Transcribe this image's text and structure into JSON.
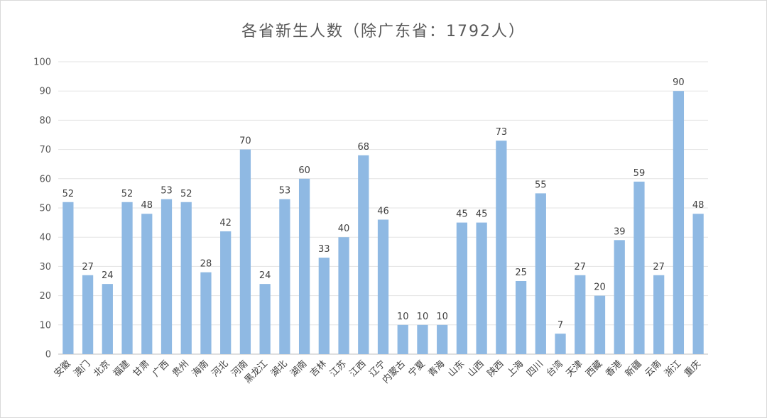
{
  "chart_data": {
    "type": "bar",
    "title": "各省新生人数（除广东省：1792人）",
    "xlabel": "",
    "ylabel": "",
    "ylim": [
      0,
      100
    ],
    "yticks": [
      0,
      10,
      20,
      30,
      40,
      50,
      60,
      70,
      80,
      90,
      100
    ],
    "grid": true,
    "legend": "none",
    "bar_color": "#8fb9e3",
    "categories": [
      "安徽",
      "澳门",
      "北京",
      "福建",
      "甘肃",
      "广西",
      "贵州",
      "海南",
      "河北",
      "河南",
      "黑龙江",
      "湖北",
      "湖南",
      "吉林",
      "江苏",
      "江西",
      "辽宁",
      "内蒙古",
      "宁夏",
      "青海",
      "山东",
      "山西",
      "陕西",
      "上海",
      "四川",
      "台湾",
      "天津",
      "西藏",
      "香港",
      "新疆",
      "云南",
      "浙江",
      "重庆"
    ],
    "values": [
      52,
      27,
      24,
      52,
      48,
      53,
      52,
      28,
      42,
      70,
      24,
      53,
      60,
      33,
      40,
      68,
      46,
      10,
      10,
      10,
      45,
      45,
      73,
      25,
      55,
      7,
      27,
      20,
      39,
      59,
      27,
      90,
      48
    ]
  }
}
